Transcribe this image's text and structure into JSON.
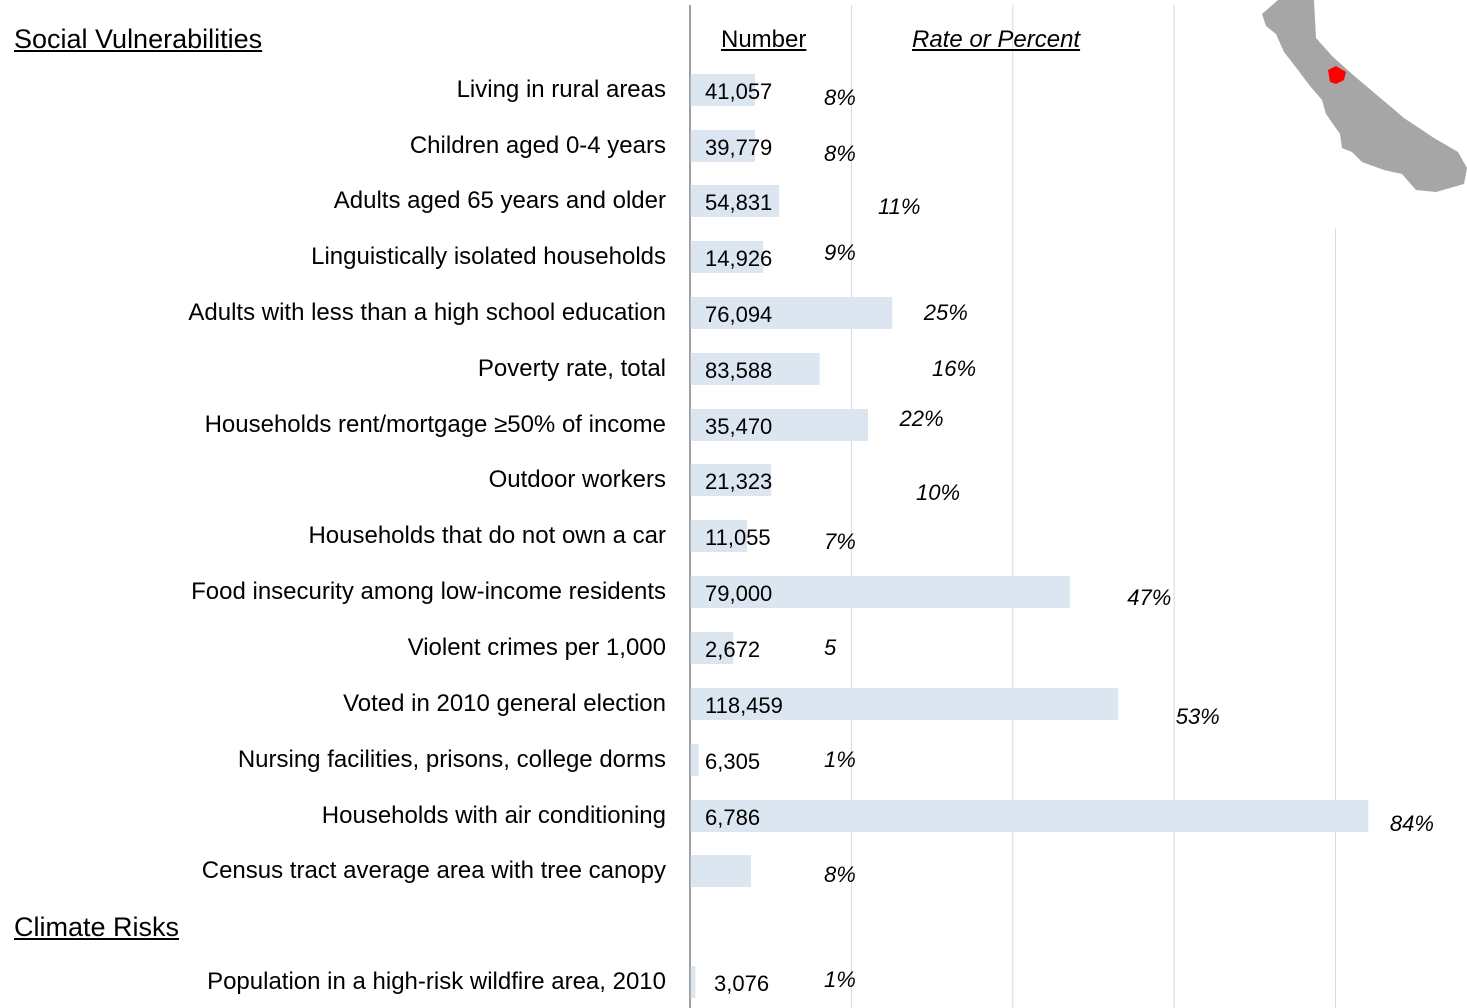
{
  "chart_data": {
    "type": "bar",
    "sections": [
      "Social Vulnerabilities ",
      "Climate Risks"
    ],
    "headers": {
      "number": "Number",
      "rate": "Rate or Percent"
    },
    "rows": [
      {
        "section": 0,
        "label": "Living in rural areas",
        "number": "41,057",
        "rate": "8%",
        "value": 8
      },
      {
        "section": 0,
        "label": "Children aged 0-4 years",
        "number": "39,779",
        "rate": "8%",
        "value": 8
      },
      {
        "section": 0,
        "label": "Adults aged 65 years and older",
        "number": "54,831",
        "rate": "11%",
        "value": 11
      },
      {
        "section": 0,
        "label": "Linguistically isolated households",
        "number": "14,926",
        "rate": "9%",
        "value": 9
      },
      {
        "section": 0,
        "label": "Adults with less than a high school education",
        "number": "76,094",
        "rate": "25%",
        "value": 25
      },
      {
        "section": 0,
        "label": "Poverty rate, total ",
        "number": "83,588",
        "rate": "16%",
        "value": 16
      },
      {
        "section": 0,
        "label": "Households rent/mortgage ≥50% of income",
        "number": "35,470",
        "rate": "22%",
        "value": 22
      },
      {
        "section": 0,
        "label": "Outdoor workers",
        "number": "21,323",
        "rate": "10%",
        "value": 10
      },
      {
        "section": 0,
        "label": "Households that do not own a car",
        "number": "11,055",
        "rate": "7%",
        "value": 7
      },
      {
        "section": 0,
        "label": "Food insecurity among low-income residents",
        "number": "79,000",
        "rate": "47%",
        "value": 47
      },
      {
        "section": 0,
        "label": "Violent crimes per 1,000",
        "number": "2,672",
        "rate": "5",
        "value": 5.3
      },
      {
        "section": 0,
        "label": "Voted in 2010 general election",
        "number": "118,459",
        "rate": "53%",
        "value": 53
      },
      {
        "section": 0,
        "label": "Nursing facilities, prisons, college dorms",
        "number": "6,305",
        "rate": "1%",
        "value": 1
      },
      {
        "section": 0,
        "label": "Households with air conditioning",
        "number": "6,786",
        "rate": "84%",
        "value": 84
      },
      {
        "section": 0,
        "label": "Census tract average area with tree canopy",
        "number": "",
        "rate": "8%",
        "value": 7.5
      },
      {
        "section": 1,
        "label": "Population in a high-risk wildfire area, 2010",
        "number": "3,076",
        "rate": "1%",
        "value": 0.6
      }
    ],
    "xlim": [
      0,
      100
    ],
    "grid": true,
    "colors": {
      "bar": "#dce6f1",
      "axis": "#808080",
      "grid": "#d9d9d9",
      "map_state": "#a6a6a6",
      "map_highlight": "#ff0000"
    }
  }
}
